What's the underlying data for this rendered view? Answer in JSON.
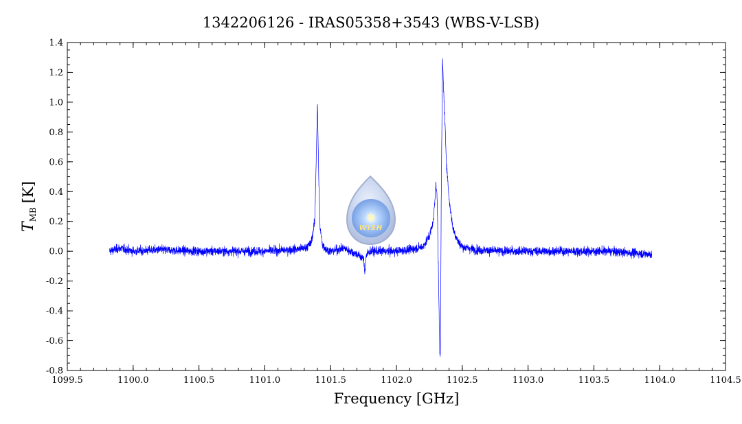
{
  "chart_data": {
    "type": "line",
    "title": "1342206126 - IRAS05358+3543 (WBS-V-LSB)",
    "xlabel": "Frequency [GHz]",
    "ylabel_main": "T",
    "ylabel_sub": "MB",
    "ylabel_unit": "[K]",
    "xlim": [
      1099.5,
      1104.5
    ],
    "ylim": [
      -0.8,
      1.4
    ],
    "x_ticks": [
      "1099.5",
      "1100.0",
      "1100.5",
      "1101.0",
      "1101.5",
      "1102.0",
      "1102.5",
      "1103.0",
      "1103.5",
      "1104.0",
      "1104.5"
    ],
    "y_ticks": [
      "-0.8",
      "-0.6",
      "-0.4",
      "-0.2",
      "0.0",
      "0.2",
      "0.4",
      "0.6",
      "0.8",
      "1.0",
      "1.2",
      "1.4"
    ],
    "grid": false,
    "series": [
      {
        "color": "#0000ff",
        "x": [
          1099.82,
          1099.9,
          1100.0,
          1100.2,
          1100.5,
          1100.8,
          1101.0,
          1101.2,
          1101.3,
          1101.35,
          1101.38,
          1101.4,
          1101.41,
          1101.42,
          1101.44,
          1101.47,
          1101.5,
          1101.6,
          1101.7,
          1101.75,
          1101.76,
          1101.77,
          1101.8,
          1101.9,
          1102.0,
          1102.1,
          1102.2,
          1102.25,
          1102.28,
          1102.3,
          1102.31,
          1102.32,
          1102.33,
          1102.335,
          1102.34,
          1102.35,
          1102.36,
          1102.38,
          1102.4,
          1102.43,
          1102.47,
          1102.5,
          1102.6,
          1102.8,
          1103.0,
          1103.3,
          1103.6,
          1103.94
        ],
        "y": [
          0.0,
          0.02,
          0.0,
          0.01,
          0.0,
          0.0,
          0.0,
          0.01,
          0.02,
          0.05,
          0.2,
          0.99,
          0.5,
          0.15,
          0.04,
          0.01,
          0.0,
          0.02,
          -0.02,
          -0.05,
          -0.14,
          -0.03,
          0.0,
          0.0,
          0.0,
          0.01,
          0.03,
          0.1,
          0.2,
          0.45,
          0.35,
          -0.2,
          -0.7,
          -0.65,
          0.3,
          1.29,
          1.05,
          0.6,
          0.35,
          0.15,
          0.06,
          0.03,
          0.01,
          0.0,
          0.0,
          0.0,
          0.0,
          -0.02
        ],
        "noise_rms": 0.03
      }
    ]
  },
  "watermark": {
    "text": "WISH"
  }
}
